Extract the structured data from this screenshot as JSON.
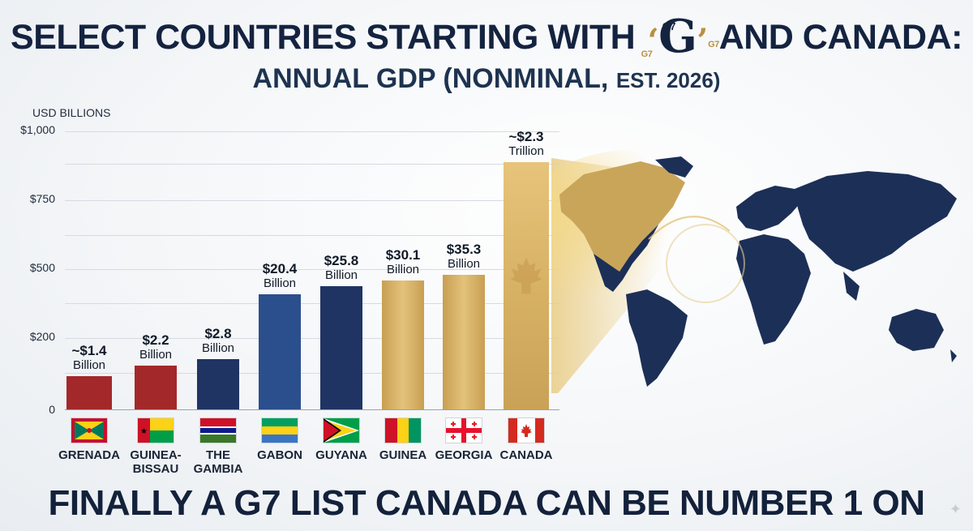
{
  "header": {
    "title_pre": "SELECT COUNTRIES STARTING WITH",
    "title_letter": "G",
    "title_quote_open": "‘",
    "title_quote_close": "’",
    "title_g7": "G7",
    "title_post": "AND CANADA:",
    "subtitle_main": "ANNUAL GDP (NONMINAL,",
    "subtitle_tail": "EST. 2026)"
  },
  "footer": {
    "text": "FINALLY A G7 LIST CANADA CAN BE NUMBER 1 ON"
  },
  "colors": {
    "red": "#a3282a",
    "navy": "#1f3463",
    "blue": "#2b4f8c",
    "gold": "#d9b560",
    "gold_dark": "#b8914a"
  },
  "chart_data": {
    "type": "bar",
    "ylabel": "USD BILLIONS",
    "y_ticks": [
      "$1,000",
      "$750",
      "$500",
      "$200",
      "0"
    ],
    "grid": true,
    "categories": [
      "GRENADA",
      "GUINEA-BISSAU",
      "THE GAMBIA",
      "GABON",
      "GUYANA",
      "GUINEA",
      "GEORGIA",
      "CANADA"
    ],
    "values": [
      1.4,
      2.2,
      2.8,
      20.4,
      25.8,
      30.1,
      35.3,
      2300
    ],
    "value_labels": [
      {
        "value": "~$1.4",
        "unit": "Billion"
      },
      {
        "value": "$2.2",
        "unit": "Billion"
      },
      {
        "value": "$2.8",
        "unit": "Billion"
      },
      {
        "value": "$20.4",
        "unit": "Billion"
      },
      {
        "value": "$25.8",
        "unit": "Billion"
      },
      {
        "value": "$30.1",
        "unit": "Billion"
      },
      {
        "value": "$35.3",
        "unit": "Billion"
      },
      {
        "value": "~$2.3",
        "unit": "Trillion"
      }
    ],
    "name_lines": [
      [
        "GRENADA"
      ],
      [
        "GUINEA-",
        "BISSAU"
      ],
      [
        "THE",
        "GAMBIA"
      ],
      [
        "GABON"
      ],
      [
        "GUYANA"
      ],
      [
        "GUINEA"
      ],
      [
        "GEORGIA"
      ],
      [
        "CANADA"
      ]
    ],
    "flags": [
      "grenada-flag",
      "guinea-bissau-flag",
      "gambia-flag",
      "gabon-flag",
      "guyana-flag",
      "guinea-flag",
      "georgia-flag",
      "canada-flag"
    ]
  }
}
